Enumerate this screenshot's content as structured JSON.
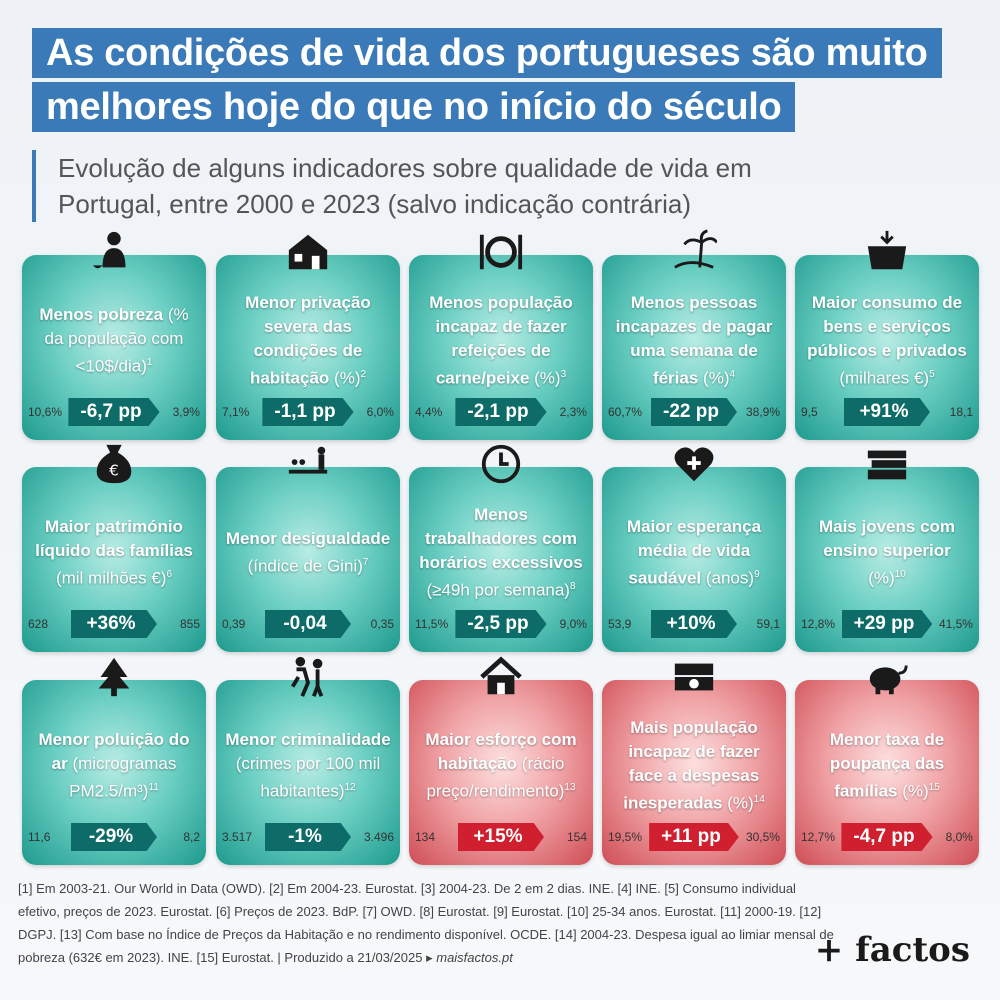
{
  "title": {
    "line1": "As condições de vida dos portugueses são muito",
    "line2": "melhores hoje do que no início do século"
  },
  "subtitle": "Evolução de alguns indicadores sobre qualidade de vida em Portugal, entre 2000 e 2023 (salvo indicação contrária)",
  "colors": {
    "title_bg": "#3a7ab8",
    "teal_badge": "#0d6b68",
    "red_badge": "#d01f2e"
  },
  "cards": [
    {
      "icon": "poverty-person-icon",
      "main": "Menos pobreza",
      "unit": "(% da população com <10$/dia)",
      "ref": "1",
      "start": "10,6%",
      "change": "-6,7 pp",
      "end": "3,9%",
      "tone": "teal"
    },
    {
      "icon": "broken-house-icon",
      "main": "Menor privação severa das condições de habitação",
      "unit": "(%)",
      "ref": "2",
      "start": "7,1%",
      "change": "-1,1 pp",
      "end": "6,0%",
      "tone": "teal"
    },
    {
      "icon": "plate-cutlery-icon",
      "main": "Menos população incapaz de fazer refeições de carne/peixe",
      "unit": "(%)",
      "ref": "3",
      "start": "4,4%",
      "change": "-2,1 pp",
      "end": "2,3%",
      "tone": "teal"
    },
    {
      "icon": "beach-palm-icon",
      "main": "Menos pessoas incapazes de pagar uma semana de férias",
      "unit": "(%)",
      "ref": "4",
      "start": "60,7%",
      "change": "-22 pp",
      "end": "38,9%",
      "tone": "teal"
    },
    {
      "icon": "shopping-basket-icon",
      "main": "Maior consumo de bens e serviços públicos e privados",
      "unit": "(milhares €)",
      "ref": "5",
      "start": "9,5",
      "change": "+91%",
      "end": "18,1",
      "tone": "teal"
    },
    {
      "icon": "money-bag-icon",
      "main": "Maior património líquido das famílias",
      "unit": "(mil milhões €)",
      "ref": "6",
      "start": "628",
      "change": "+36%",
      "end": "855",
      "tone": "teal"
    },
    {
      "icon": "inequality-scale-icon",
      "main": "Menor desigualdade",
      "unit": "(índice de Gini)",
      "ref": "7",
      "start": "0,39",
      "change": "-0,04",
      "end": "0,35",
      "tone": "teal"
    },
    {
      "icon": "clock-icon",
      "main": "Menos trabalhadores com horários excessivos",
      "unit": "(≥49h por semana)",
      "ref": "8",
      "start": "11,5%",
      "change": "-2,5 pp",
      "end": "9,0%",
      "tone": "teal"
    },
    {
      "icon": "heart-health-icon",
      "main": "Maior esperança média de vida saudável",
      "unit": "(anos)",
      "ref": "9",
      "start": "53,9",
      "change": "+10%",
      "end": "59,1",
      "tone": "teal"
    },
    {
      "icon": "books-icon",
      "main": "Mais jovens com ensino superior",
      "unit": "(%)",
      "ref": "10",
      "start": "12,8%",
      "change": "+29 pp",
      "end": "41,5%",
      "tone": "teal"
    },
    {
      "icon": "tree-icon",
      "main": "Menor poluição do ar",
      "unit": "(microgramas PM2.5/m³)",
      "ref": "11",
      "start": "11,6",
      "change": "-29%",
      "end": "8,2",
      "tone": "teal"
    },
    {
      "icon": "thief-icon",
      "main": "Menor criminalidade",
      "unit": "(crimes por 100 mil habitantes)",
      "ref": "12",
      "start": "3.517",
      "change": "-1%",
      "end": "3.496",
      "tone": "teal"
    },
    {
      "icon": "house-icon",
      "main": "Maior esforço com habitação",
      "unit": "(rácio preço/rendimento)",
      "ref": "13",
      "start": "134",
      "change": "+15%",
      "end": "154",
      "tone": "red"
    },
    {
      "icon": "banknotes-icon",
      "main": "Mais população incapaz de fazer face a despesas inesperadas",
      "unit": "(%)",
      "ref": "14",
      "start": "19,5%",
      "change": "+11 pp",
      "end": "30,5%",
      "tone": "red"
    },
    {
      "icon": "piggy-bank-icon",
      "main": "Menor taxa de poupança das famílias",
      "unit": "(%)",
      "ref": "15",
      "start": "12,7%",
      "change": "-4,7 pp",
      "end": "8,0%",
      "tone": "red"
    }
  ],
  "footnote": {
    "text": "[1] Em 2003-21. Our World in Data (OWD). [2] Em 2004-23. Eurostat. [3] 2004-23. De 2 em 2 dias. INE. [4] INE. [5] Consumo individual efetivo, preços de 2023. Eurostat. [6] Preços de 2023. BdP. [7] OWD. [8] Eurostat. [9] Eurostat. [10] 25-34 anos. Eurostat. [11] 2000-19. [12] DGPJ. [13] Com base no Índice de Preços da Habitação e no rendimento disponível. OCDE. [14] 2004-23. Despesa igual ao limiar mensal de pobreza (632€ em 2023). INE. [15] Eurostat. | Produzido a 21/03/2025 ▸",
    "url": "maisfactos.pt"
  },
  "brand": "+ factos"
}
